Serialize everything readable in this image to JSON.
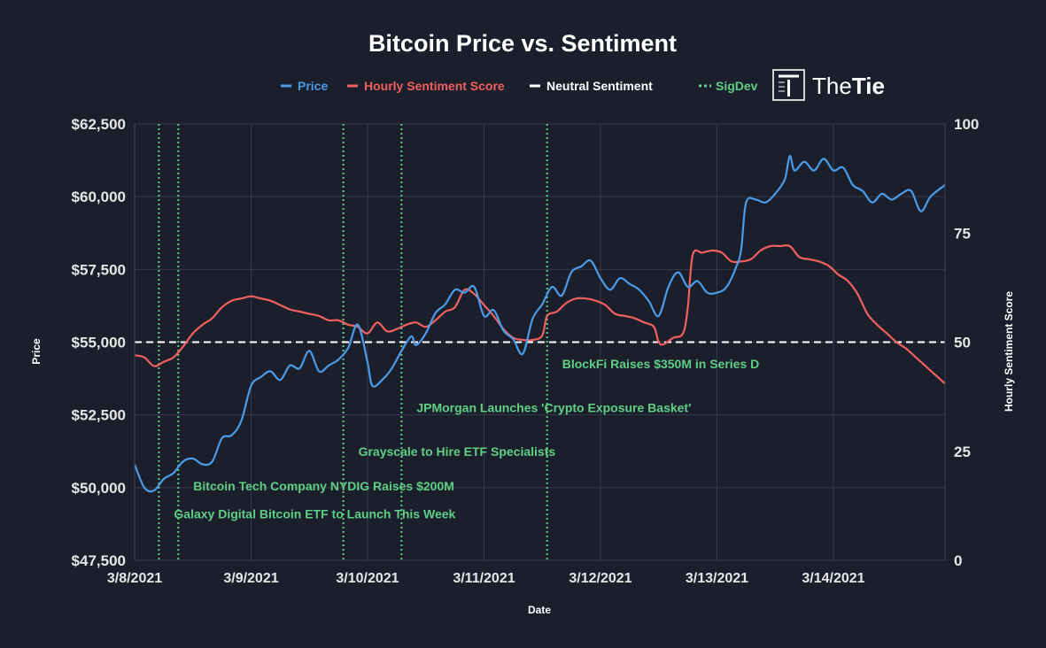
{
  "chart_data": {
    "type": "line",
    "title": "Bitcoin Price vs. Sentiment",
    "xlabel": "Date",
    "ylabel_left": "Price",
    "ylabel_right": "Hourly Sentiment Score",
    "x_range": [
      "2021-03-08T00:00",
      "2021-03-14T23:00"
    ],
    "x_ticks": [
      "3/8/2021",
      "3/9/2021",
      "3/10/2021",
      "3/11/2021",
      "3/12/2021",
      "3/13/2021",
      "3/14/2021"
    ],
    "y_left_range": [
      47500,
      62500
    ],
    "y_left_ticks": [
      "$47,500",
      "$50,000",
      "$52,500",
      "$55,000",
      "$57,500",
      "$60,000",
      "$62,500"
    ],
    "y_right_range": [
      0,
      100
    ],
    "y_right_ticks": [
      "0",
      "25",
      "50",
      "75",
      "100"
    ],
    "grid": true,
    "legend_position": "top-center",
    "legend": [
      {
        "label": "Price",
        "color": "#4a9be8",
        "style": "dash"
      },
      {
        "label": "Hourly Sentiment Score",
        "color": "#f0605f",
        "style": "dash"
      },
      {
        "label": "Neutral Sentiment",
        "color": "#ffffff",
        "style": "dash"
      },
      {
        "label": "SigDev",
        "color": "#5fcf85",
        "style": "dot"
      }
    ],
    "series": [
      {
        "name": "Price",
        "axis": "left",
        "color": "#4a9be8",
        "points": [
          [
            "2021-03-08T00:00",
            50800
          ],
          [
            "2021-03-08T02:00",
            50000
          ],
          [
            "2021-03-08T04:00",
            49900
          ],
          [
            "2021-03-08T06:00",
            50300
          ],
          [
            "2021-03-08T08:00",
            50500
          ],
          [
            "2021-03-08T10:00",
            50900
          ],
          [
            "2021-03-08T12:00",
            51000
          ],
          [
            "2021-03-08T14:00",
            50800
          ],
          [
            "2021-03-08T16:00",
            50900
          ],
          [
            "2021-03-08T18:00",
            51700
          ],
          [
            "2021-03-08T20:00",
            51800
          ],
          [
            "2021-03-08T22:00",
            52300
          ],
          [
            "2021-03-09T00:00",
            53500
          ],
          [
            "2021-03-09T02:00",
            53800
          ],
          [
            "2021-03-09T04:00",
            54000
          ],
          [
            "2021-03-09T06:00",
            53700
          ],
          [
            "2021-03-09T08:00",
            54200
          ],
          [
            "2021-03-09T10:00",
            54100
          ],
          [
            "2021-03-09T12:00",
            54700
          ],
          [
            "2021-03-09T14:00",
            54000
          ],
          [
            "2021-03-09T16:00",
            54200
          ],
          [
            "2021-03-09T18:00",
            54400
          ],
          [
            "2021-03-09T20:00",
            54800
          ],
          [
            "2021-03-09T22:00",
            55600
          ],
          [
            "2021-03-10T00:00",
            54300
          ],
          [
            "2021-03-10T01:00",
            53500
          ],
          [
            "2021-03-10T03:00",
            53700
          ],
          [
            "2021-03-10T05:00",
            54100
          ],
          [
            "2021-03-10T07:00",
            54700
          ],
          [
            "2021-03-10T09:00",
            55200
          ],
          [
            "2021-03-10T10:00",
            54900
          ],
          [
            "2021-03-10T12:00",
            55300
          ],
          [
            "2021-03-10T14:00",
            56000
          ],
          [
            "2021-03-10T16:00",
            56300
          ],
          [
            "2021-03-10T18:00",
            56800
          ],
          [
            "2021-03-10T20:00",
            56700
          ],
          [
            "2021-03-10T22:00",
            56900
          ],
          [
            "2021-03-11T00:00",
            55900
          ],
          [
            "2021-03-11T02:00",
            56100
          ],
          [
            "2021-03-11T04:00",
            55400
          ],
          [
            "2021-03-11T06:00",
            55100
          ],
          [
            "2021-03-11T08:00",
            54600
          ],
          [
            "2021-03-11T10:00",
            55800
          ],
          [
            "2021-03-11T12:00",
            56300
          ],
          [
            "2021-03-11T14:00",
            56900
          ],
          [
            "2021-03-11T16:00",
            56600
          ],
          [
            "2021-03-11T18:00",
            57400
          ],
          [
            "2021-03-11T20:00",
            57600
          ],
          [
            "2021-03-11T22:00",
            57800
          ],
          [
            "2021-03-12T00:00",
            57200
          ],
          [
            "2021-03-12T02:00",
            56800
          ],
          [
            "2021-03-12T04:00",
            57200
          ],
          [
            "2021-03-12T06:00",
            57000
          ],
          [
            "2021-03-12T08:00",
            56800
          ],
          [
            "2021-03-12T10:00",
            56400
          ],
          [
            "2021-03-12T12:00",
            55900
          ],
          [
            "2021-03-12T14:00",
            56900
          ],
          [
            "2021-03-12T16:00",
            57400
          ],
          [
            "2021-03-12T18:00",
            56900
          ],
          [
            "2021-03-12T20:00",
            57100
          ],
          [
            "2021-03-12T22:00",
            56700
          ],
          [
            "2021-03-13T00:00",
            56700
          ],
          [
            "2021-03-13T02:00",
            56900
          ],
          [
            "2021-03-13T04:00",
            57600
          ],
          [
            "2021-03-13T05:00",
            58200
          ],
          [
            "2021-03-13T06:00",
            59800
          ],
          [
            "2021-03-13T08:00",
            59900
          ],
          [
            "2021-03-13T10:00",
            59800
          ],
          [
            "2021-03-13T12:00",
            60100
          ],
          [
            "2021-03-13T14:00",
            60600
          ],
          [
            "2021-03-13T15:00",
            61400
          ],
          [
            "2021-03-13T16:00",
            60900
          ],
          [
            "2021-03-13T18:00",
            61200
          ],
          [
            "2021-03-13T20:00",
            60900
          ],
          [
            "2021-03-13T22:00",
            61300
          ],
          [
            "2021-03-14T00:00",
            60900
          ],
          [
            "2021-03-14T02:00",
            61000
          ],
          [
            "2021-03-14T04:00",
            60400
          ],
          [
            "2021-03-14T06:00",
            60200
          ],
          [
            "2021-03-14T08:00",
            59800
          ],
          [
            "2021-03-14T10:00",
            60100
          ],
          [
            "2021-03-14T12:00",
            59900
          ],
          [
            "2021-03-14T14:00",
            60100
          ],
          [
            "2021-03-14T16:00",
            60200
          ],
          [
            "2021-03-14T18:00",
            59500
          ],
          [
            "2021-03-14T20:00",
            60000
          ],
          [
            "2021-03-14T23:00",
            60400
          ]
        ]
      },
      {
        "name": "Hourly Sentiment Score",
        "axis": "right",
        "color": "#f0605f",
        "points": [
          [
            "2021-03-08T00:00",
            47.0
          ],
          [
            "2021-03-08T02:00",
            46.5
          ],
          [
            "2021-03-08T04:00",
            44.5
          ],
          [
            "2021-03-08T06:00",
            45.5
          ],
          [
            "2021-03-08T08:00",
            46.5
          ],
          [
            "2021-03-08T10:00",
            49.0
          ],
          [
            "2021-03-08T12:00",
            52.0
          ],
          [
            "2021-03-08T14:00",
            54.0
          ],
          [
            "2021-03-08T16:00",
            55.5
          ],
          [
            "2021-03-08T18:00",
            58.0
          ],
          [
            "2021-03-08T20:00",
            59.5
          ],
          [
            "2021-03-08T22:00",
            60.0
          ],
          [
            "2021-03-09T00:00",
            60.5
          ],
          [
            "2021-03-09T02:00",
            60.0
          ],
          [
            "2021-03-09T04:00",
            59.5
          ],
          [
            "2021-03-09T06:00",
            58.5
          ],
          [
            "2021-03-09T08:00",
            57.5
          ],
          [
            "2021-03-09T10:00",
            57.0
          ],
          [
            "2021-03-09T12:00",
            56.5
          ],
          [
            "2021-03-09T14:00",
            56.0
          ],
          [
            "2021-03-09T16:00",
            55.0
          ],
          [
            "2021-03-09T18:00",
            55.0
          ],
          [
            "2021-03-09T20:00",
            54.0
          ],
          [
            "2021-03-09T22:00",
            53.5
          ],
          [
            "2021-03-10T00:00",
            52.0
          ],
          [
            "2021-03-10T02:00",
            54.5
          ],
          [
            "2021-03-10T04:00",
            52.5
          ],
          [
            "2021-03-10T06:00",
            53.0
          ],
          [
            "2021-03-10T08:00",
            54.0
          ],
          [
            "2021-03-10T10:00",
            54.5
          ],
          [
            "2021-03-10T12:00",
            53.5
          ],
          [
            "2021-03-10T14:00",
            55.0
          ],
          [
            "2021-03-10T16:00",
            57.0
          ],
          [
            "2021-03-10T18:00",
            58.0
          ],
          [
            "2021-03-10T20:00",
            62.0
          ],
          [
            "2021-03-10T22:00",
            61.0
          ],
          [
            "2021-03-11T00:00",
            58.5
          ],
          [
            "2021-03-11T02:00",
            56.0
          ],
          [
            "2021-03-11T04:00",
            53.0
          ],
          [
            "2021-03-11T06:00",
            51.0
          ],
          [
            "2021-03-11T08:00",
            50.5
          ],
          [
            "2021-03-11T10:00",
            50.5
          ],
          [
            "2021-03-11T12:00",
            51.5
          ],
          [
            "2021-03-11T13:00",
            56.0
          ],
          [
            "2021-03-11T15:00",
            57.0
          ],
          [
            "2021-03-11T17:00",
            59.0
          ],
          [
            "2021-03-11T19:00",
            60.0
          ],
          [
            "2021-03-11T21:00",
            60.0
          ],
          [
            "2021-03-11T23:00",
            59.5
          ],
          [
            "2021-03-12T01:00",
            58.5
          ],
          [
            "2021-03-12T03:00",
            56.5
          ],
          [
            "2021-03-12T05:00",
            56.0
          ],
          [
            "2021-03-12T07:00",
            55.5
          ],
          [
            "2021-03-12T09:00",
            54.5
          ],
          [
            "2021-03-12T11:00",
            53.5
          ],
          [
            "2021-03-12T12:00",
            50.0
          ],
          [
            "2021-03-12T13:00",
            49.5
          ],
          [
            "2021-03-12T15:00",
            51.0
          ],
          [
            "2021-03-12T17:00",
            52.0
          ],
          [
            "2021-03-12T18:00",
            58.0
          ],
          [
            "2021-03-12T19:00",
            70.0
          ],
          [
            "2021-03-12T21:00",
            70.5
          ],
          [
            "2021-03-12T23:00",
            71.0
          ],
          [
            "2021-03-13T01:00",
            70.5
          ],
          [
            "2021-03-13T03:00",
            68.5
          ],
          [
            "2021-03-13T05:00",
            68.5
          ],
          [
            "2021-03-13T07:00",
            69.0
          ],
          [
            "2021-03-13T09:00",
            71.0
          ],
          [
            "2021-03-13T11:00",
            72.0
          ],
          [
            "2021-03-13T13:00",
            72.0
          ],
          [
            "2021-03-13T15:00",
            72.0
          ],
          [
            "2021-03-13T17:00",
            69.5
          ],
          [
            "2021-03-13T19:00",
            69.0
          ],
          [
            "2021-03-13T21:00",
            68.5
          ],
          [
            "2021-03-13T23:00",
            67.5
          ],
          [
            "2021-03-14T01:00",
            65.5
          ],
          [
            "2021-03-14T03:00",
            64.0
          ],
          [
            "2021-03-14T05:00",
            61.0
          ],
          [
            "2021-03-14T07:00",
            56.5
          ],
          [
            "2021-03-14T09:00",
            54.0
          ],
          [
            "2021-03-14T11:00",
            52.0
          ],
          [
            "2021-03-14T13:00",
            50.0
          ],
          [
            "2021-03-14T15:00",
            48.5
          ],
          [
            "2021-03-14T17:00",
            46.5
          ],
          [
            "2021-03-14T19:00",
            44.5
          ],
          [
            "2021-03-14T21:00",
            42.5
          ],
          [
            "2021-03-14T23:00",
            40.5
          ]
        ]
      }
    ],
    "reference_line": {
      "label": "Neutral Sentiment",
      "axis": "right",
      "value": 50,
      "color": "#ffffff"
    },
    "sigdev_events": [
      {
        "date": "2021-03-08T05:00",
        "label": "Galaxy Digital Bitcoin ETF to Launch This Week",
        "label_price": 49100
      },
      {
        "date": "2021-03-08T09:00",
        "label": "Bitcoin Tech Company NYDIG Raises $200M",
        "label_price": 50050
      },
      {
        "date": "2021-03-09T19:00",
        "label": "Grayscale to Hire ETF Specialists",
        "label_price": 51250
      },
      {
        "date": "2021-03-10T07:00",
        "label": "JPMorgan Launches 'Crypto Exposure Basket'",
        "label_price": 52750
      },
      {
        "date": "2021-03-11T13:00",
        "label": "BlockFi Raises $350M in Series D",
        "label_price": 54250
      }
    ]
  },
  "logo": {
    "text_plain": "The",
    "text_bold": "Tie"
  }
}
